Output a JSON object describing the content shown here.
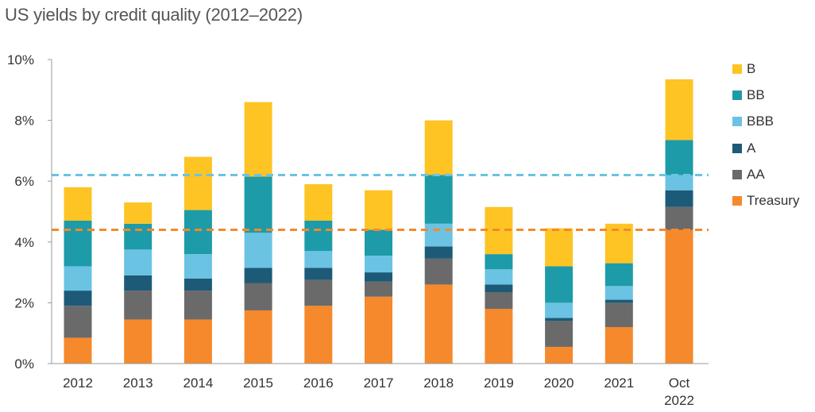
{
  "title": "US yields by credit quality (2012–2022)",
  "chart_data": {
    "type": "bar",
    "stacked": true,
    "categories": [
      "2012",
      "2013",
      "2014",
      "2015",
      "2016",
      "2017",
      "2018",
      "2019",
      "2020",
      "2021",
      "Oct\n2022"
    ],
    "ylim": [
      0,
      10
    ],
    "yticks": [
      "0%",
      "2%",
      "4%",
      "6%",
      "8%",
      "10%"
    ],
    "xlabel": "",
    "ylabel": "",
    "grid": false,
    "legend_position": "right",
    "series": [
      {
        "name": "Treasury",
        "color": "#F5892C",
        "values": [
          0.85,
          1.45,
          1.45,
          1.75,
          1.9,
          2.2,
          2.6,
          1.8,
          0.55,
          1.2,
          4.4
        ]
      },
      {
        "name": "AA",
        "color": "#6A6A6A",
        "values": [
          1.05,
          0.95,
          0.95,
          0.9,
          0.85,
          0.5,
          0.85,
          0.55,
          0.85,
          0.8,
          0.75
        ]
      },
      {
        "name": "A",
        "color": "#1D5A78",
        "values": [
          0.5,
          0.5,
          0.4,
          0.5,
          0.4,
          0.3,
          0.4,
          0.25,
          0.1,
          0.1,
          0.55
        ]
      },
      {
        "name": "BBB",
        "color": "#6BC3E3",
        "values": [
          0.8,
          0.85,
          0.8,
          1.15,
          0.55,
          0.55,
          0.75,
          0.5,
          0.5,
          0.45,
          0.5
        ]
      },
      {
        "name": "BB",
        "color": "#1E9BA8",
        "values": [
          1.5,
          0.85,
          1.45,
          1.85,
          1.0,
          0.85,
          1.6,
          0.5,
          1.2,
          0.75,
          1.15
        ]
      },
      {
        "name": "B",
        "color": "#FDC424",
        "values": [
          1.1,
          0.7,
          1.75,
          2.45,
          1.2,
          1.3,
          1.8,
          1.55,
          1.25,
          1.3,
          2.0
        ]
      }
    ],
    "reference_lines": [
      {
        "value": 6.2,
        "color": "#6BC3E3",
        "style": "dashed"
      },
      {
        "value": 4.4,
        "color": "#F5892C",
        "style": "dashed"
      }
    ],
    "legend_order": [
      "B",
      "BB",
      "BBB",
      "A",
      "AA",
      "Treasury"
    ]
  }
}
